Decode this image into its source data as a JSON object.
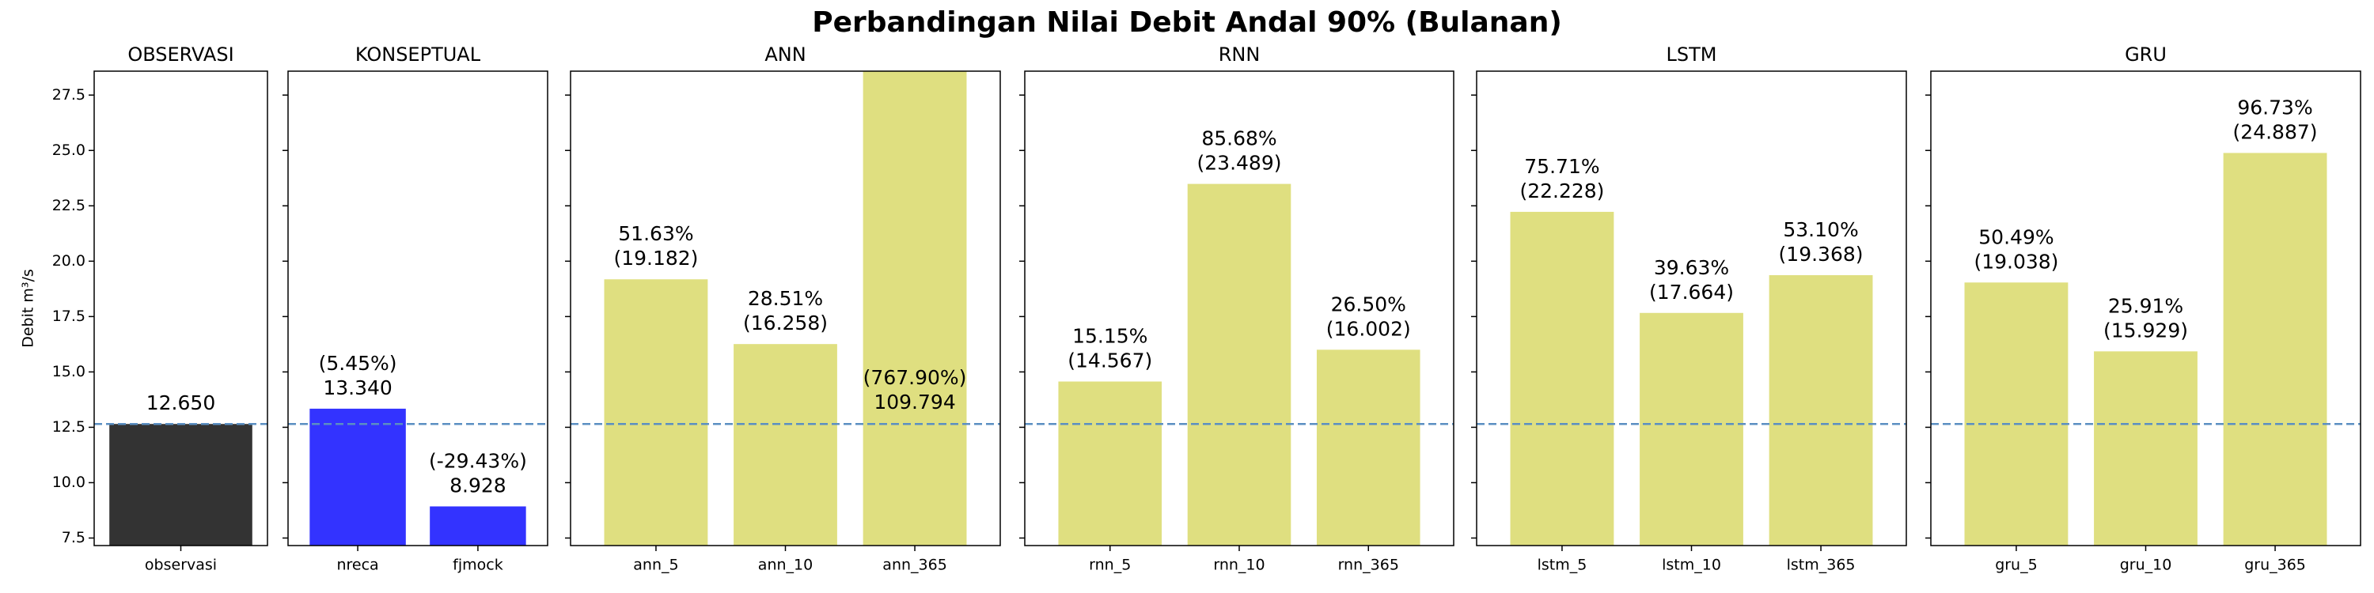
{
  "title": "Perbandingan Nilai Debit Andal 90% (Bulanan)",
  "chart_data": [
    {
      "type": "bar",
      "title": "OBSERVASI",
      "ylabel": "Debit m³/s",
      "categories": [
        "observasi"
      ],
      "values": [
        12.65
      ],
      "value_labels": [
        "12.650"
      ],
      "color": "#333333",
      "ylim": [
        7.16,
        28.58
      ],
      "yticks": [
        7.5,
        {
          "value": 10,
          "label": "10.0"
        },
        12.5,
        {
          "value": 15,
          "label": "15.0"
        },
        17.5,
        {
          "value": 20,
          "label": "20.0"
        },
        22.5,
        {
          "value": 25,
          "label": "25.0"
        },
        27.5
      ],
      "reference_color": "#5b8fc2"
    },
    {
      "type": "bar",
      "title": "KONSEPTUAL",
      "categories": [
        "nreca",
        "fjmock"
      ],
      "values": [
        13.34,
        8.928
      ],
      "value_labels": [
        "13.340",
        "8.928"
      ],
      "percent_labels": [
        "(5.45%)",
        "(-29.43%)"
      ],
      "color": "#3333ff"
    },
    {
      "type": "bar",
      "title": "ANN",
      "categories": [
        "ann_5",
        "ann_10",
        "ann_365"
      ],
      "values": [
        19.182,
        16.258,
        109.794
      ],
      "value_labels": [
        "(19.182)",
        "(16.258)",
        "109.794"
      ],
      "percent_labels": [
        "51.63%",
        "28.51%",
        "(767.90%)"
      ],
      "color": "#dfdf80"
    },
    {
      "type": "bar",
      "title": "RNN",
      "categories": [
        "rnn_5",
        "rnn_10",
        "rnn_365"
      ],
      "values": [
        14.567,
        23.489,
        16.002
      ],
      "value_labels": [
        "(14.567)",
        "(23.489)",
        "(16.002)"
      ],
      "percent_labels": [
        "15.15%",
        "85.68%",
        "26.50%"
      ],
      "color": "#dfdf80"
    },
    {
      "type": "bar",
      "title": "LSTM",
      "categories": [
        "lstm_5",
        "lstm_10",
        "lstm_365"
      ],
      "values": [
        22.228,
        17.664,
        19.368
      ],
      "value_labels": [
        "(22.228)",
        "(17.664)",
        "(19.368)"
      ],
      "percent_labels": [
        "75.71%",
        "39.63%",
        "53.10%"
      ],
      "color": "#dfdf80"
    },
    {
      "type": "bar",
      "title": "GRU",
      "categories": [
        "gru_5",
        "gru_10",
        "gru_365"
      ],
      "values": [
        19.038,
        15.929,
        24.887
      ],
      "value_labels": [
        "(19.038)",
        "(15.929)",
        "(24.887)"
      ],
      "percent_labels": [
        "50.49%",
        "25.91%",
        "96.73%"
      ],
      "color": "#dfdf80"
    }
  ]
}
